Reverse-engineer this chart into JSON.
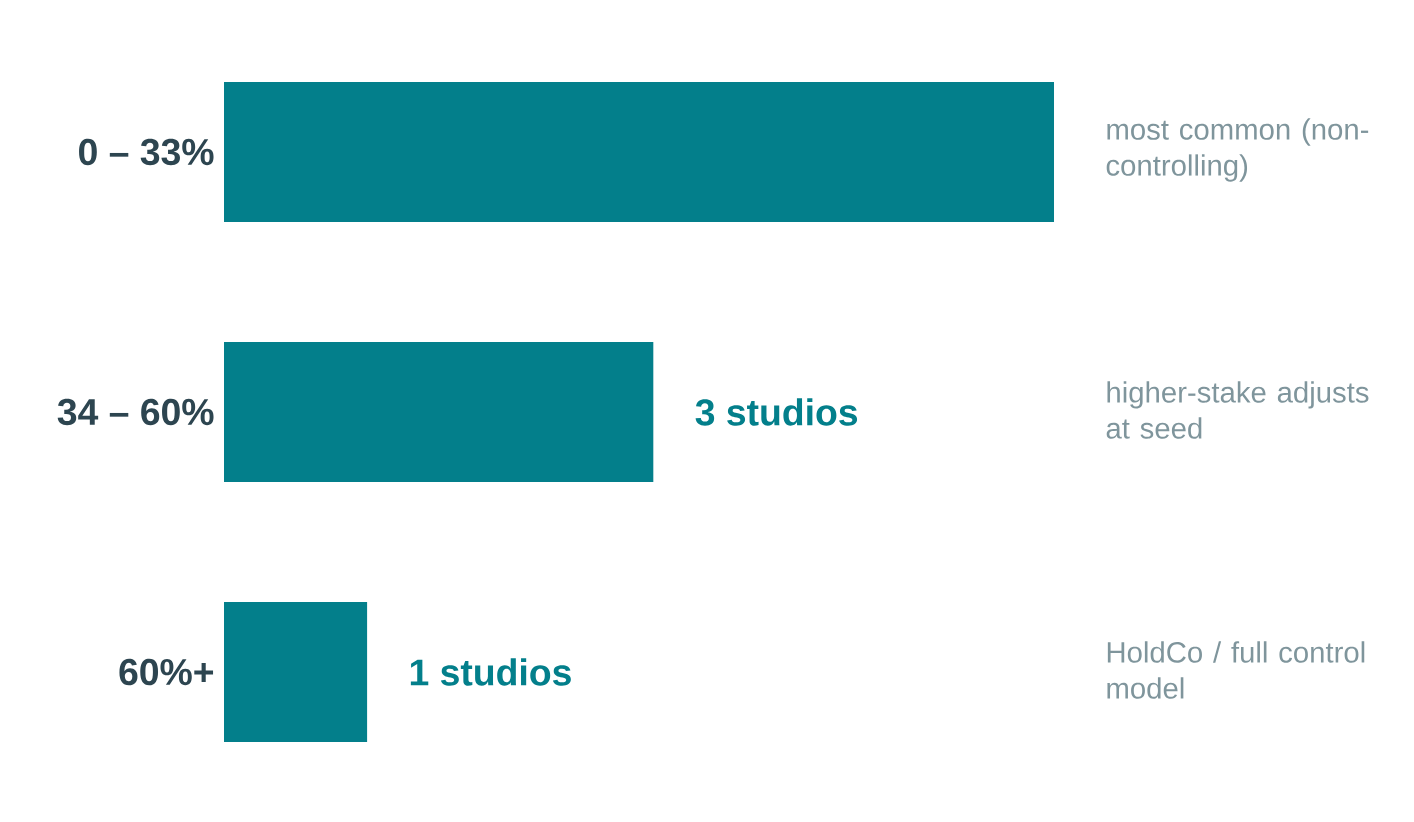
{
  "chart_data": {
    "type": "bar",
    "orientation": "horizontal",
    "categories": [
      "0 – 33%",
      "34 – 60%",
      "60%+"
    ],
    "values": [
      5.8,
      3,
      1
    ],
    "value_labels": [
      null,
      "3 studios",
      "1 studios"
    ],
    "color": "#037f8b",
    "annotations": [
      "most common (non-controlling)",
      "higher-stake adjusts at seed",
      "HoldCo / full control model"
    ]
  }
}
